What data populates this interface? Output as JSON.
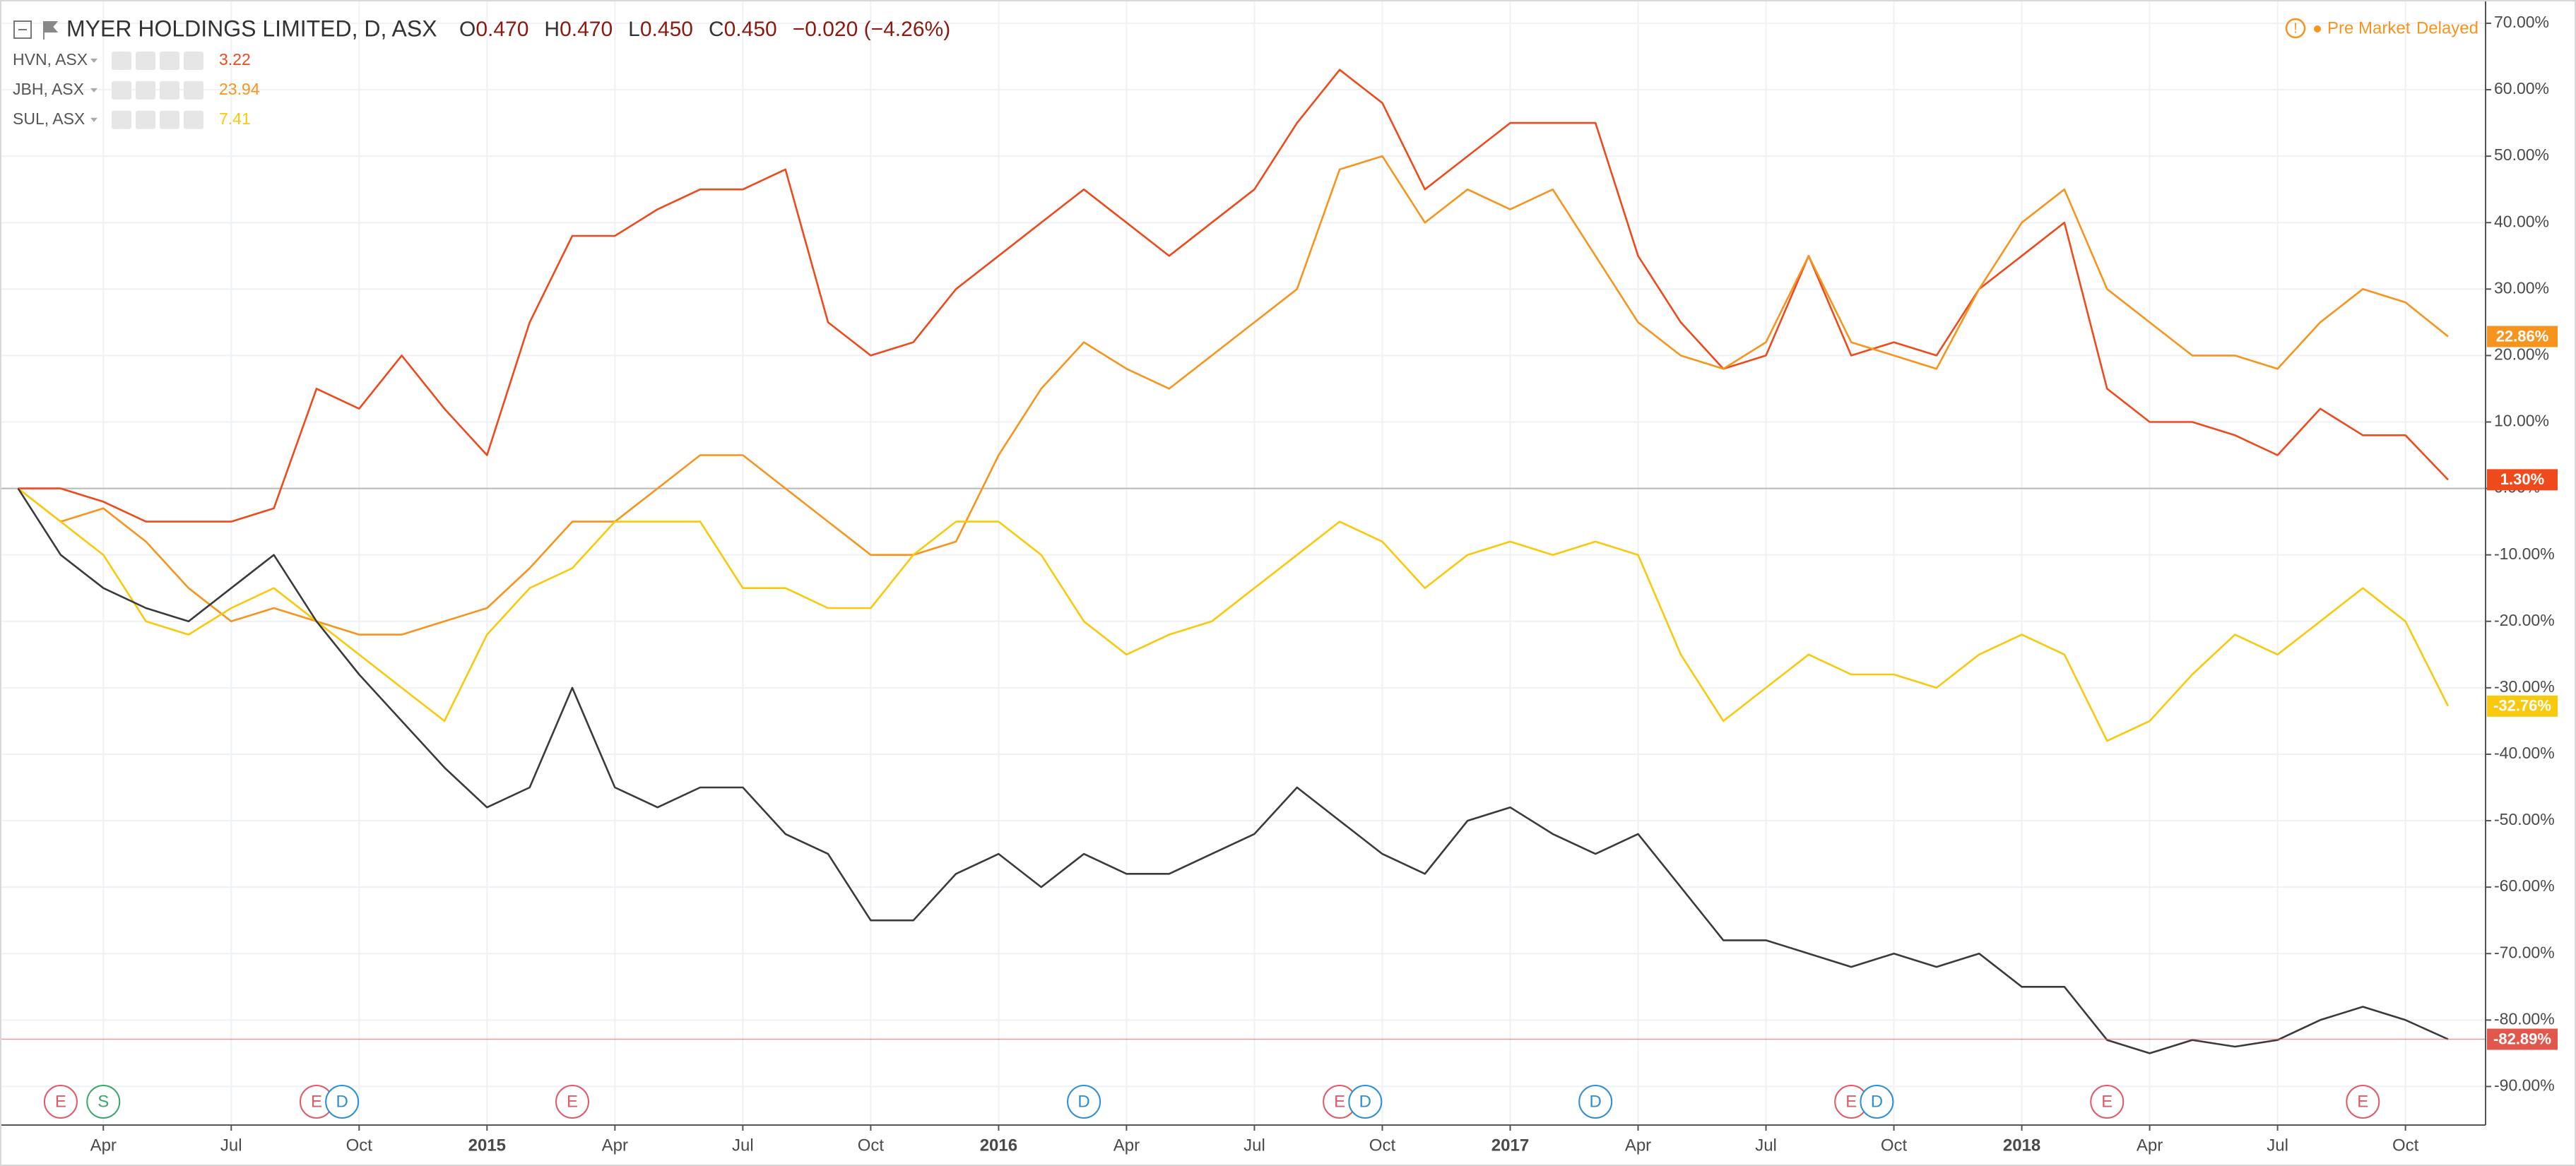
{
  "chart_data": {
    "type": "line",
    "status": "Pre Market",
    "delay": "Delayed",
    "ohlc": [
      {
        "label": "O",
        "value": "0.470"
      },
      {
        "label": "H",
        "value": "0.470"
      },
      {
        "label": "L",
        "value": "0.450"
      },
      {
        "label": "C",
        "value": "0.450"
      }
    ],
    "change": "−0.020 (−4.26%)",
    "categories": [
      null,
      null,
      "Apr",
      null,
      null,
      "Jul",
      null,
      null,
      "Oct",
      null,
      null,
      "2015",
      null,
      null,
      "Apr",
      null,
      null,
      "Jul",
      null,
      null,
      "Oct",
      null,
      null,
      "2016",
      null,
      null,
      "Apr",
      null,
      null,
      "Jul",
      null,
      null,
      "Oct",
      null,
      null,
      "2017",
      null,
      null,
      "Apr",
      null,
      null,
      "Jul",
      null,
      null,
      "Oct",
      null,
      null,
      "2018",
      null,
      null,
      "Apr",
      null,
      null,
      "Jul",
      null,
      null,
      "Oct",
      null
    ],
    "ylim": [
      -95.8,
      73.5
    ],
    "yticks": [
      {
        "value": 70,
        "label": "70.00%"
      },
      {
        "value": 60,
        "label": "60.00%"
      },
      {
        "value": 50,
        "label": "50.00%"
      },
      {
        "value": 40,
        "label": "40.00%"
      },
      {
        "value": 30,
        "label": "30.00%"
      },
      {
        "value": 20,
        "label": "20.00%"
      },
      {
        "value": 10,
        "label": "10.00%"
      },
      {
        "value": 0,
        "label": "0.00%"
      },
      {
        "value": -10,
        "label": "-10.00%"
      },
      {
        "value": -20,
        "label": "-20.00%"
      },
      {
        "value": -30,
        "label": "-30.00%"
      },
      {
        "value": -40,
        "label": "-40.00%"
      },
      {
        "value": -50,
        "label": "-50.00%"
      },
      {
        "value": -60,
        "label": "-60.00%"
      },
      {
        "value": -70,
        "label": "-70.00%"
      },
      {
        "value": -80,
        "label": "-80.00%"
      },
      {
        "value": -90,
        "label": "-90.00%"
      }
    ],
    "grid": true,
    "series": [
      {
        "name": "HVN, ASX",
        "price": "3.22",
        "color": "#ee4a1c",
        "end_label": "1.30%",
        "values": [
          0,
          0,
          -2,
          -5,
          -5,
          -5,
          -3,
          15,
          12,
          20,
          12,
          5,
          25,
          38,
          38,
          42,
          45,
          45,
          48,
          25,
          20,
          22,
          30,
          35,
          40,
          45,
          40,
          35,
          40,
          45,
          55,
          63,
          58,
          45,
          50,
          55,
          55,
          55,
          35,
          25,
          18,
          20,
          35,
          20,
          22,
          20,
          30,
          35,
          40,
          15,
          10,
          10,
          8,
          5,
          12,
          8,
          8,
          1.3
        ]
      },
      {
        "name": "JBH, ASX",
        "price": "23.94",
        "color": "#f7941d",
        "end_label": "22.86%",
        "values": [
          0,
          -5,
          -3,
          -8,
          -15,
          -20,
          -18,
          -20,
          -22,
          -22,
          -20,
          -18,
          -12,
          -5,
          -5,
          0,
          5,
          5,
          0,
          -5,
          -10,
          -10,
          -8,
          5,
          15,
          22,
          18,
          15,
          20,
          25,
          30,
          48,
          50,
          40,
          45,
          42,
          45,
          35,
          25,
          20,
          18,
          22,
          35,
          22,
          20,
          18,
          30,
          40,
          45,
          30,
          25,
          20,
          20,
          18,
          25,
          30,
          28,
          22.86
        ]
      },
      {
        "name": "SUL, ASX",
        "price": "7.41",
        "color": "#f8c90c",
        "end_label": "-32.76%",
        "values": [
          0,
          -5,
          -10,
          -20,
          -22,
          -18,
          -15,
          -20,
          -25,
          -30,
          -35,
          -22,
          -15,
          -12,
          -5,
          -5,
          -5,
          -15,
          -15,
          -18,
          -18,
          -10,
          -5,
          -5,
          -10,
          -20,
          -25,
          -22,
          -20,
          -15,
          -10,
          -5,
          -8,
          -15,
          -10,
          -8,
          -10,
          -8,
          -10,
          -25,
          -35,
          -30,
          -25,
          -28,
          -28,
          -30,
          -25,
          -22,
          -25,
          -38,
          -35,
          -28,
          -22,
          -25,
          -20,
          -15,
          -20,
          -32.76
        ]
      },
      {
        "name": "MYER HOLDINGS LIMITED, D, ASX",
        "color": "#3b3b3b",
        "end_label": "-82.89%",
        "end_color": "#e2574c",
        "values": [
          0,
          -10,
          -15,
          -18,
          -20,
          -15,
          -10,
          -20,
          -28,
          -35,
          -42,
          -48,
          -45,
          -30,
          -45,
          -48,
          -45,
          -45,
          -52,
          -55,
          -65,
          -65,
          -58,
          -55,
          -60,
          -55,
          -58,
          -58,
          -55,
          -52,
          -45,
          -50,
          -55,
          -58,
          -50,
          -48,
          -52,
          -55,
          -52,
          -60,
          -68,
          -68,
          -70,
          -72,
          -70,
          -72,
          -70,
          -75,
          -75,
          -83,
          -85,
          -83,
          -84,
          -83,
          -80,
          -78,
          -80,
          -82.89
        ]
      }
    ],
    "events": [
      {
        "at": 1,
        "label": "E",
        "color": "#e05a6a"
      },
      {
        "at": 2,
        "label": "S",
        "color": "#3aa76d"
      },
      {
        "at": 7,
        "label": "E",
        "color": "#e05a6a"
      },
      {
        "at": 7.6,
        "label": "D",
        "color": "#2d8fd5"
      },
      {
        "at": 13,
        "label": "E",
        "color": "#e05a6a"
      },
      {
        "at": 25,
        "label": "D",
        "color": "#2d8fd5"
      },
      {
        "at": 31,
        "label": "E",
        "color": "#e05a6a"
      },
      {
        "at": 31.6,
        "label": "D",
        "color": "#2d8fd5"
      },
      {
        "at": 37,
        "label": "D",
        "color": "#2d8fd5"
      },
      {
        "at": 43,
        "label": "E",
        "color": "#e05a6a"
      },
      {
        "at": 43.6,
        "label": "D",
        "color": "#2d8fd5"
      },
      {
        "at": 49,
        "label": "E",
        "color": "#e05a6a"
      },
      {
        "at": 55,
        "label": "E",
        "color": "#e05a6a"
      }
    ]
  }
}
